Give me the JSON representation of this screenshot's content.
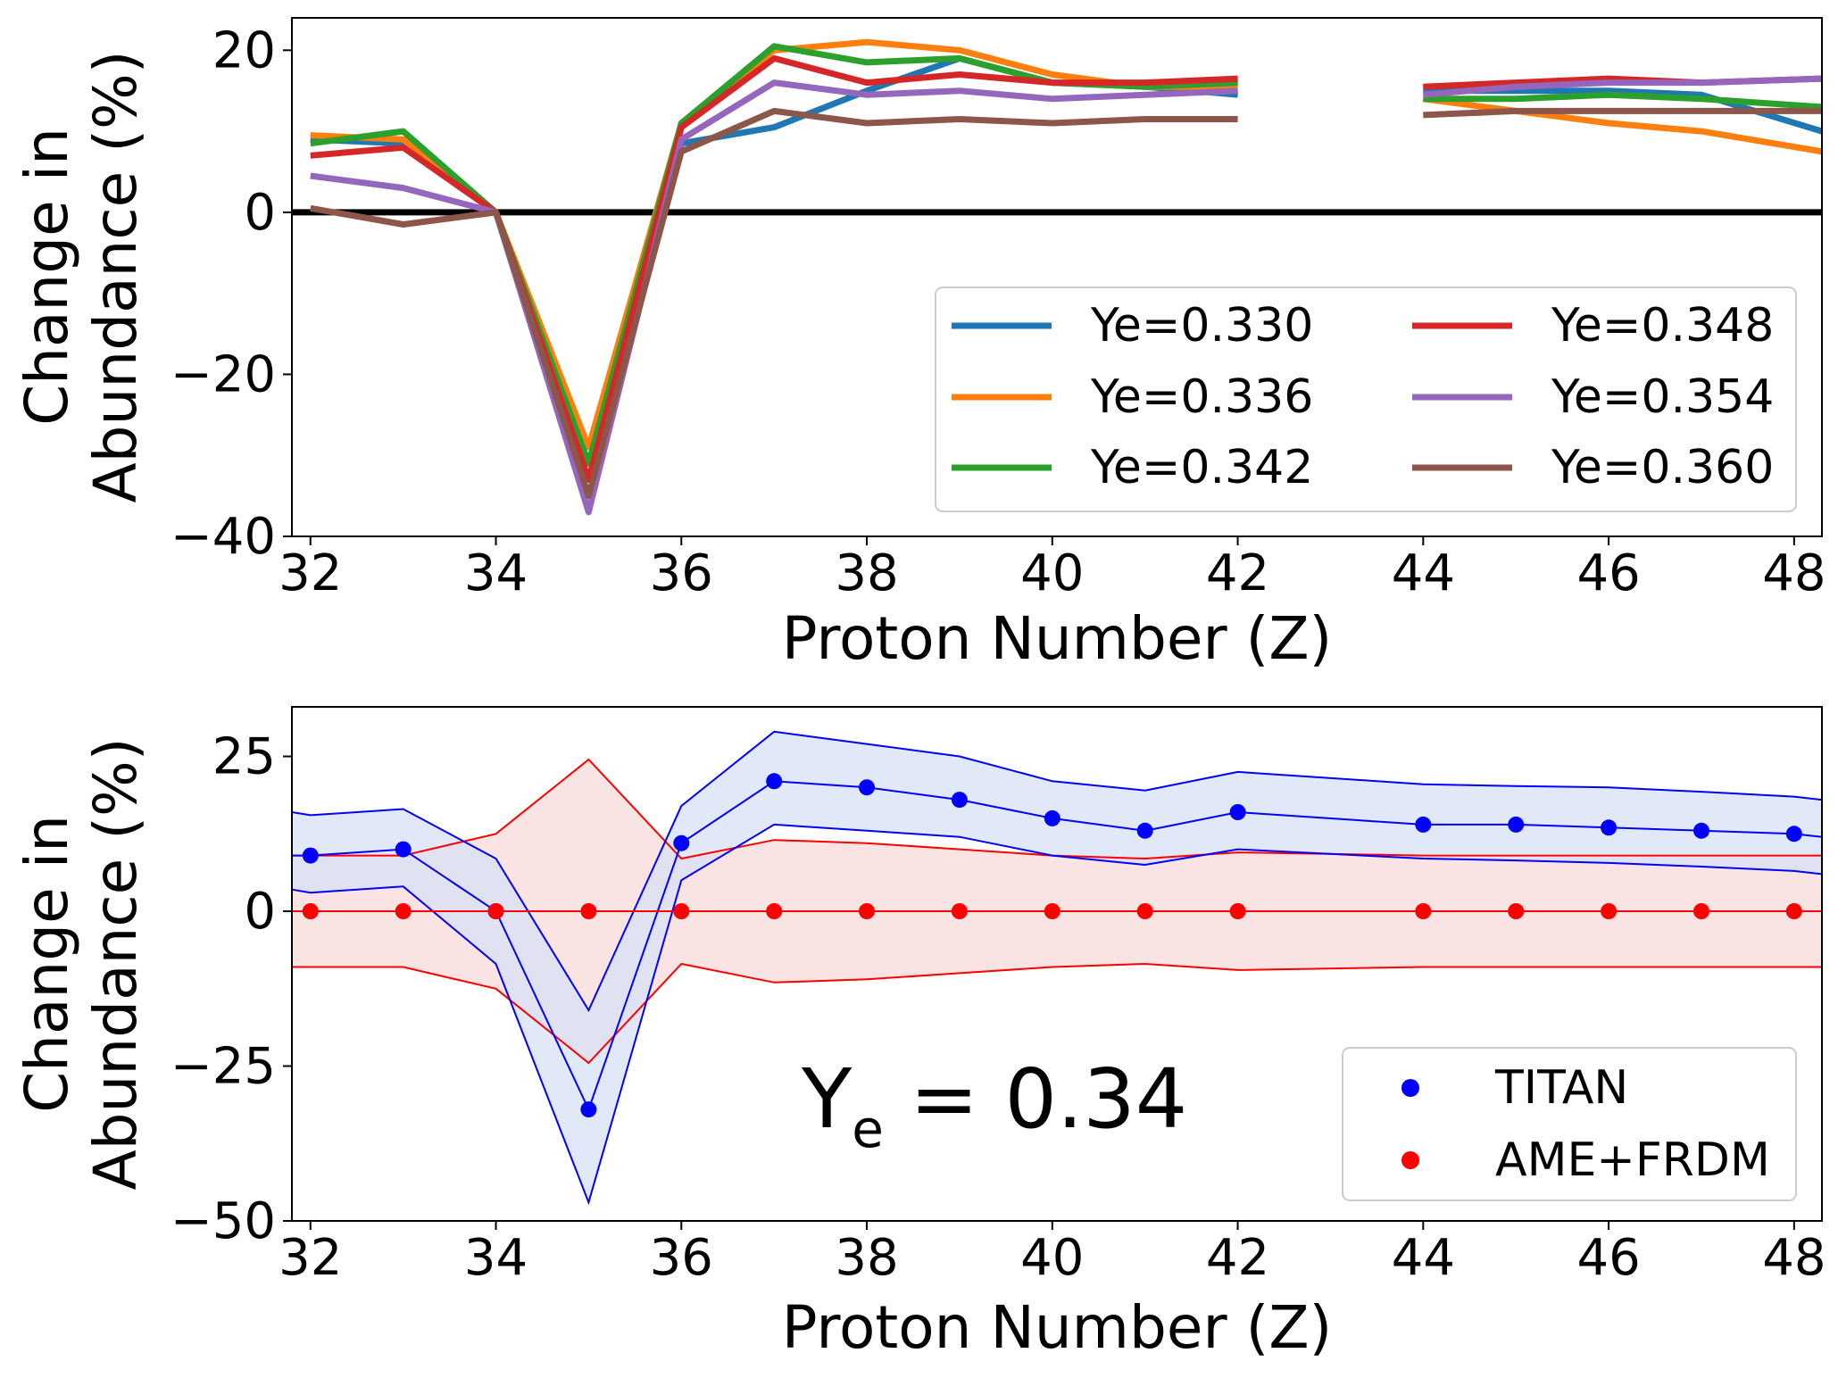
{
  "chart_data": [
    {
      "type": "line",
      "xlabel": "Proton Number (Z)",
      "ylabel_lines": [
        "Change in",
        "Abundance (%)"
      ],
      "xlim": [
        31.8,
        48.3
      ],
      "ylim": [
        -40,
        24
      ],
      "xticks": [
        32,
        34,
        36,
        38,
        40,
        42,
        44,
        46,
        48
      ],
      "yticks": [
        -40,
        -20,
        0,
        20
      ],
      "ytick_labels": [
        "−40",
        "−20",
        "0",
        "20"
      ],
      "zero_line": true,
      "legend_position": "lower-right",
      "legend_columns": 2,
      "series": [
        {
          "name": "Ye=0.330",
          "color": "#1f77b4",
          "x": [
            32,
            33,
            34,
            35,
            36,
            37,
            38,
            39,
            40,
            41,
            42,
            44,
            45,
            46,
            47,
            48.3
          ],
          "y": [
            9,
            8.5,
            0,
            -31,
            8.5,
            10.5,
            15,
            19,
            16,
            15.5,
            14.5,
            15,
            15,
            15,
            14.5,
            10
          ]
        },
        {
          "name": "Ye=0.336",
          "color": "#ff7f0e",
          "x": [
            32,
            33,
            34,
            35,
            36,
            37,
            38,
            39,
            40,
            41,
            42,
            44,
            45,
            46,
            47,
            48.3
          ],
          "y": [
            9.5,
            9,
            0,
            -29,
            11,
            20,
            21,
            20,
            17,
            15.5,
            15.5,
            14,
            12.5,
            11,
            10,
            7.5
          ]
        },
        {
          "name": "Ye=0.342",
          "color": "#2ca02c",
          "x": [
            32,
            33,
            34,
            35,
            36,
            37,
            38,
            39,
            40,
            41,
            42,
            44,
            45,
            46,
            47,
            48.3
          ],
          "y": [
            8.5,
            10,
            0,
            -31,
            11,
            20.5,
            18.5,
            19,
            16,
            15.5,
            16,
            14,
            14,
            14.5,
            14,
            13
          ]
        },
        {
          "name": "Ye=0.348",
          "color": "#d62728",
          "x": [
            32,
            33,
            34,
            35,
            36,
            37,
            38,
            39,
            40,
            41,
            42,
            44,
            45,
            46,
            47,
            48.3
          ],
          "y": [
            7,
            8,
            0,
            -33,
            10.5,
            19,
            16,
            17,
            16,
            16,
            16.5,
            15.5,
            16,
            16.5,
            16,
            16.5
          ]
        },
        {
          "name": "Ye=0.354",
          "color": "#9467bd",
          "x": [
            32,
            33,
            34,
            35,
            36,
            37,
            38,
            39,
            40,
            41,
            42,
            44,
            45,
            46,
            47,
            48.3
          ],
          "y": [
            4.5,
            3,
            0,
            -37,
            9,
            16,
            14.5,
            15,
            14,
            14.5,
            15,
            14.5,
            15.5,
            16,
            16,
            16.5
          ]
        },
        {
          "name": "Ye=0.360",
          "color": "#8c564b",
          "x": [
            32,
            33,
            34,
            35,
            36,
            37,
            38,
            39,
            40,
            41,
            42,
            44,
            45,
            46,
            47,
            48.3
          ],
          "y": [
            0.5,
            -1.5,
            0,
            -35,
            7.5,
            12.5,
            11,
            11.5,
            11,
            11.5,
            11.5,
            12,
            12.5,
            12.5,
            12.5,
            12.5
          ]
        }
      ]
    },
    {
      "type": "scatter",
      "xlabel": "Proton Number (Z)",
      "ylabel_lines": [
        "Change in",
        "Abundance (%)"
      ],
      "xlim": [
        31.8,
        48.3
      ],
      "ylim": [
        -50,
        33
      ],
      "xticks": [
        32,
        34,
        36,
        38,
        40,
        42,
        44,
        46,
        48
      ],
      "yticks": [
        -50,
        -25,
        0,
        25
      ],
      "ytick_labels": [
        "−50",
        "−25",
        "0",
        "25"
      ],
      "annotation": {
        "main": "Y",
        "sub": "e",
        "rest": " = 0.34"
      },
      "legend_position": "lower-right",
      "series": [
        {
          "name": "TITAN",
          "color": "#0000ff",
          "fill": "#d4e0f7",
          "x": [
            32,
            33,
            34,
            35,
            36,
            37,
            38,
            39,
            40,
            41,
            42,
            44,
            45,
            46,
            47,
            48
          ],
          "y": [
            9,
            10,
            0,
            -32,
            11,
            21,
            20,
            18,
            15,
            13,
            16,
            14,
            14,
            13.5,
            13,
            12.5
          ],
          "band_x": [
            31.8,
            32,
            33,
            34,
            35,
            36,
            37,
            38,
            39,
            40,
            41,
            42,
            44,
            45,
            46,
            47,
            48,
            48.3
          ],
          "band_upper": [
            16,
            15.5,
            16.5,
            8.5,
            -16,
            17,
            29,
            27,
            25,
            21,
            19.5,
            22.5,
            20.5,
            20.2,
            20,
            19.3,
            18.5,
            18
          ],
          "band_lower": [
            3.5,
            3,
            4,
            -8.5,
            -47,
            5,
            14,
            13,
            12,
            9,
            7.5,
            10,
            8.5,
            8.2,
            7.8,
            7.2,
            6.5,
            6
          ]
        },
        {
          "name": "AME+FRDM",
          "color": "#ff0000",
          "fill": "#f8d7d7",
          "x": [
            32,
            33,
            34,
            35,
            36,
            37,
            38,
            39,
            40,
            41,
            42,
            44,
            45,
            46,
            47,
            48
          ],
          "y": [
            0,
            0,
            0,
            0,
            0,
            0,
            0,
            0,
            0,
            0,
            0,
            0,
            0,
            0,
            0,
            0
          ],
          "band_x": [
            31.8,
            32,
            33,
            34,
            35,
            36,
            37,
            38,
            39,
            40,
            41,
            42,
            44,
            45,
            46,
            47,
            48,
            48.3
          ],
          "band_upper": [
            9,
            9,
            9,
            12.5,
            24.5,
            8.5,
            11.5,
            11,
            10,
            9,
            8.5,
            9.5,
            9,
            9,
            9,
            9,
            9,
            9
          ],
          "band_lower": [
            -9,
            -9,
            -9,
            -12.5,
            -24.5,
            -8.5,
            -11.5,
            -11,
            -10,
            -9,
            -8.5,
            -9.5,
            -9,
            -9,
            -9,
            -9,
            -9,
            -9
          ]
        }
      ]
    }
  ]
}
